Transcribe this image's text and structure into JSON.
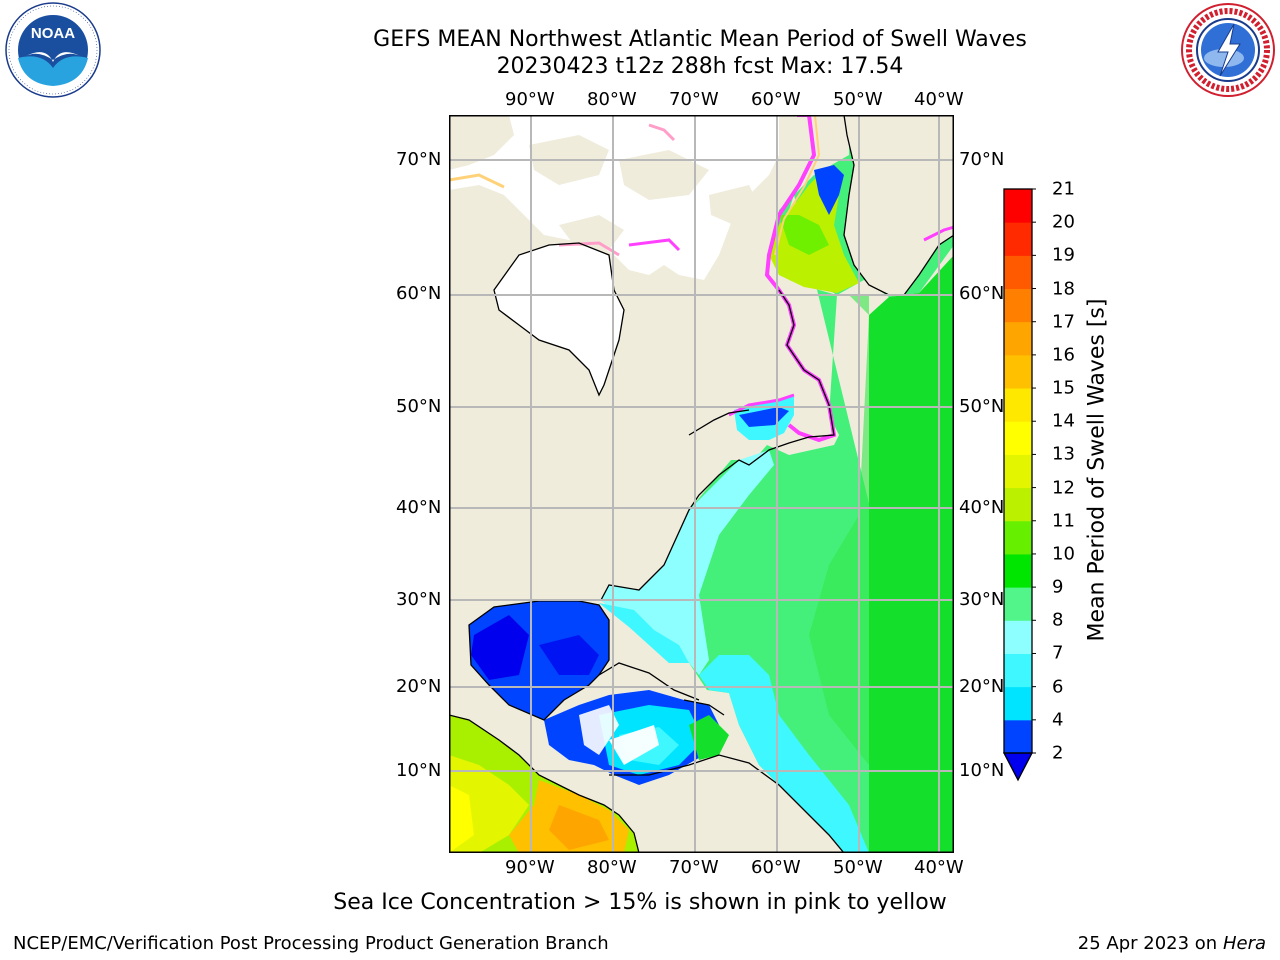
{
  "header": {
    "title_line1": "GEFS MEAN Northwest Atlantic Mean Period of Swell Waves",
    "title_line2": "20230423 t12z 288h fcst   Max: 17.54"
  },
  "logos": {
    "noaa": {
      "text": "NOAA",
      "ring_text": "NATIONAL OCEANIC AND ATMOSPHERIC ADMINISTRATION · U.S. DEPARTMENT OF COMMERCE"
    },
    "nws": {
      "ring_text": "NATIONAL WEATHER SERVICE"
    }
  },
  "map": {
    "lon_labels": [
      "90°W",
      "80°W",
      "70°W",
      "60°W",
      "50°W",
      "40°W"
    ],
    "lat_labels": [
      "70°N",
      "60°N",
      "50°N",
      "40°N",
      "30°N",
      "20°N",
      "10°N"
    ],
    "lon_range": [
      "100°W",
      "38°W"
    ],
    "lat_range": [
      "0°N",
      "73°N"
    ],
    "grid": true,
    "land_color": "#efecdc",
    "ice_colors": [
      "#ff40ff",
      "#ff9ec8",
      "#ffd27a"
    ]
  },
  "colorbar": {
    "label": "Mean Period of Swell Waves [s]",
    "ticks": [
      "2",
      "4",
      "6",
      "7",
      "8",
      "9",
      "10",
      "11",
      "12",
      "13",
      "14",
      "15",
      "16",
      "17",
      "18",
      "19",
      "20",
      "21"
    ],
    "colors": [
      "#0044ff",
      "#00e4ff",
      "#3ff7ff",
      "#8effff",
      "#52f58a",
      "#00e600",
      "#66f000",
      "#bbf000",
      "#e4f500",
      "#ffff00",
      "#ffe800",
      "#ffc000",
      "#ffa500",
      "#ff8000",
      "#ff5a00",
      "#ff2a00",
      "#ff0000"
    ],
    "under_color": "#0000ee",
    "placement": "right"
  },
  "note": "Sea Ice Concentration > 15% is shown in pink to yellow",
  "footer": {
    "left": "NCEP/EMC/Verification Post Processing Product Generation Branch",
    "right_prefix": "25 Apr 2023 on ",
    "right_host": "Hera"
  }
}
